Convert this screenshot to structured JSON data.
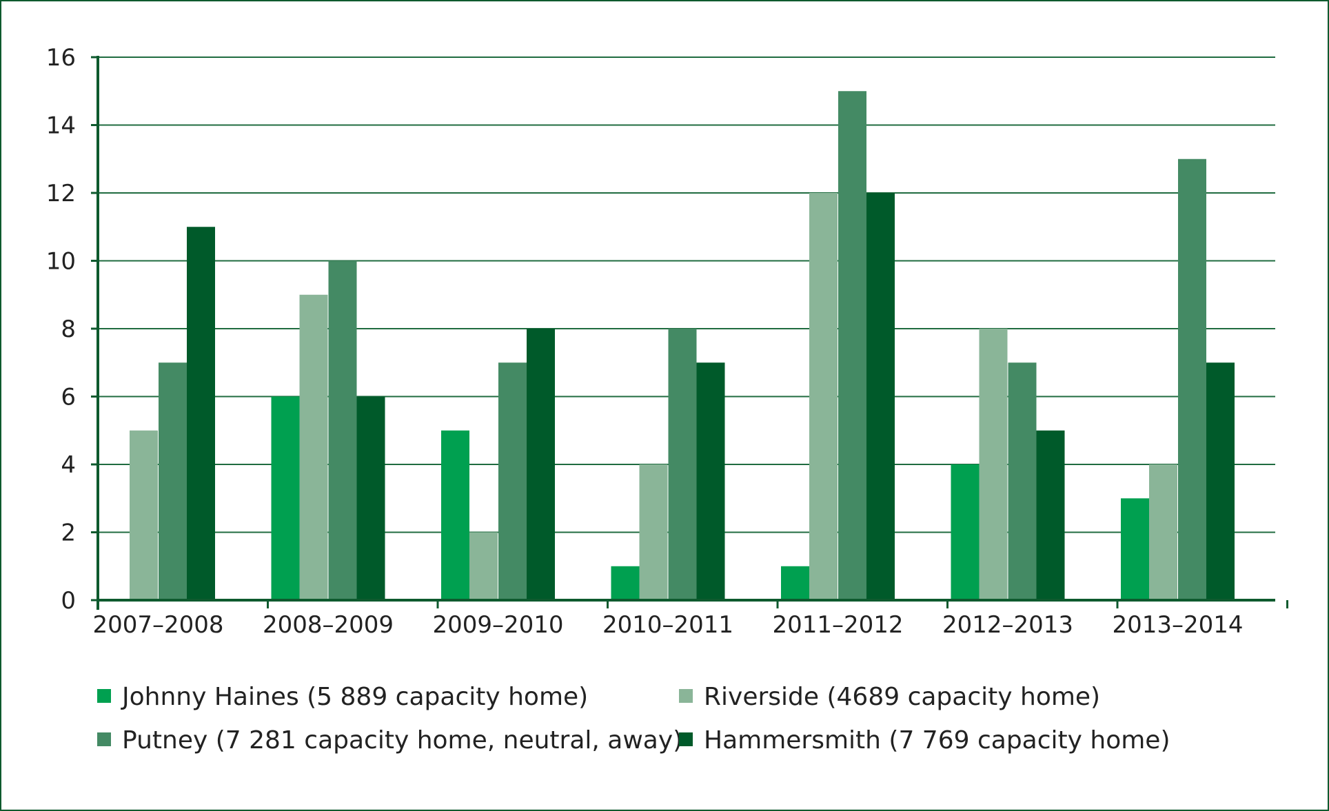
{
  "chart_data": {
    "type": "bar",
    "categories": [
      "2007–2008",
      "2008–2009",
      "2009–2010",
      "2010–2011",
      "2011–2012",
      "2012–2013",
      "2013–2014"
    ],
    "series": [
      {
        "name": "Johnny Haines (5 889 capacity home)",
        "color": "#00a050",
        "values": [
          0,
          6,
          5,
          1,
          1,
          4,
          3
        ]
      },
      {
        "name": "Riverside (4689 capacity home)",
        "color": "#8ab598",
        "values": [
          5,
          9,
          2,
          4,
          12,
          8,
          4
        ]
      },
      {
        "name": "Putney (7 281 capacity home, neutral, away)",
        "color": "#448a64",
        "values": [
          7,
          10,
          7,
          8,
          15,
          7,
          13
        ]
      },
      {
        "name": "Hammersmith (7 769 capacity home)",
        "color": "#005a2a",
        "values": [
          11,
          6,
          8,
          7,
          12,
          5,
          7
        ]
      }
    ],
    "y_ticks": [
      "0",
      "2",
      "4",
      "6",
      "8",
      "10",
      "12",
      "14",
      "16"
    ],
    "ylim": [
      0,
      16
    ],
    "grid": true,
    "legend_position": "bottom",
    "title": "",
    "xlabel": "",
    "ylabel": ""
  },
  "colors": {
    "frame": "#0e5a2e",
    "axis": "#0e5a2e",
    "grid": "#1f6b3f"
  }
}
